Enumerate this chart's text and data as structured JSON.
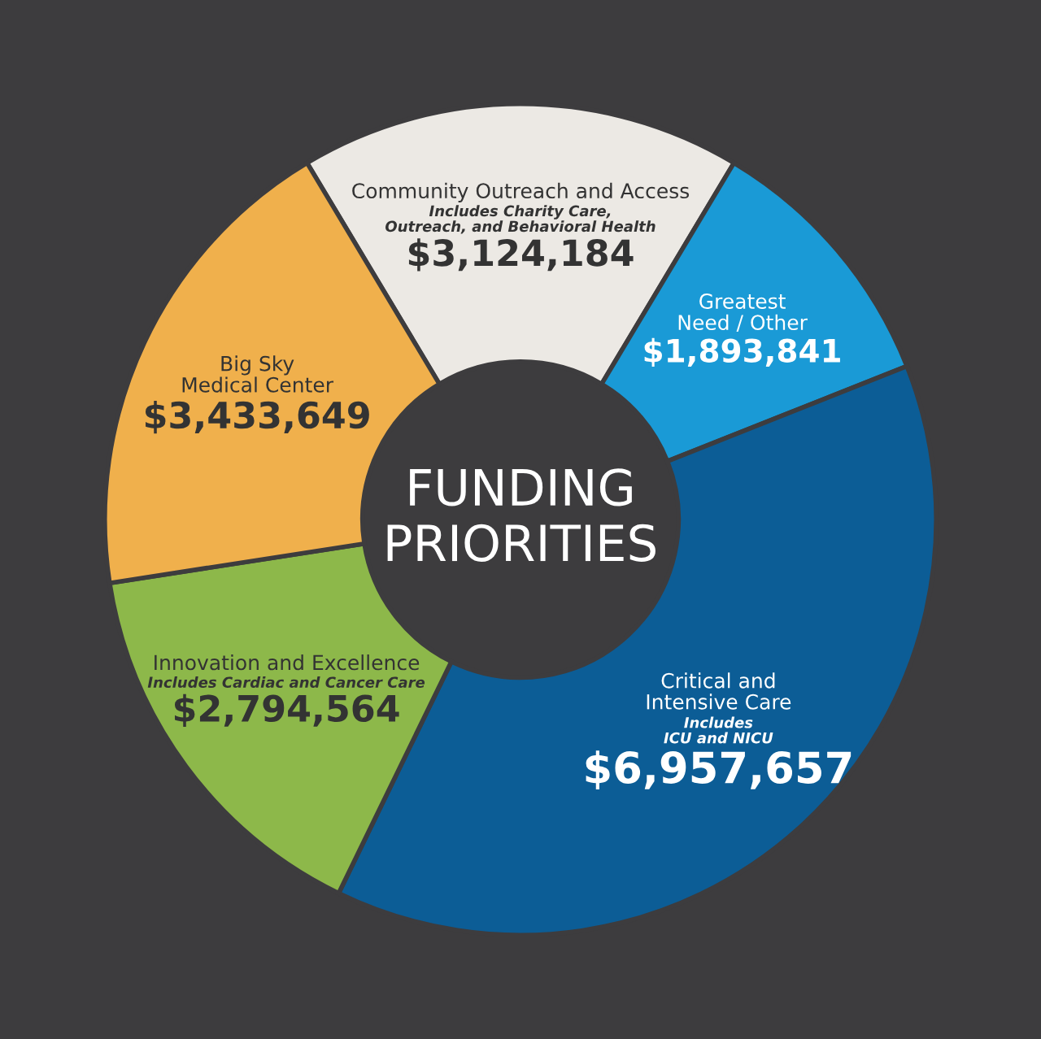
{
  "chart_data": {
    "type": "donut",
    "title": "FUNDING\nPRIORITIES",
    "categories": [
      "Community Outreach and Access",
      "Greatest\nNeed / Other",
      "Critical and\nIntensive Care",
      "Innovation and Excellence",
      "Big Sky\nMedical Center"
    ],
    "values": [
      3124184,
      1893841,
      6957657,
      2794564,
      3433649
    ],
    "value_labels": [
      "$3,124,184",
      "$1,893,841",
      "$6,957,657",
      "$2,794,564",
      "$3,433,649"
    ],
    "colors": [
      "#ece9e4",
      "#1a9ad6",
      "#0c5d96",
      "#8db84a",
      "#f0b04c"
    ],
    "annotations": [
      {
        "text": "Includes Charity Care,\nOutreach, and Behavioral Health",
        "x": "Community Outreach and Access"
      },
      {
        "text": "Includes\nICU and NICU",
        "x": "Critical and\nIntensive Care"
      },
      {
        "text": "Includes Cardiac and Cancer Care",
        "x": "Innovation and Excellence"
      }
    ]
  }
}
